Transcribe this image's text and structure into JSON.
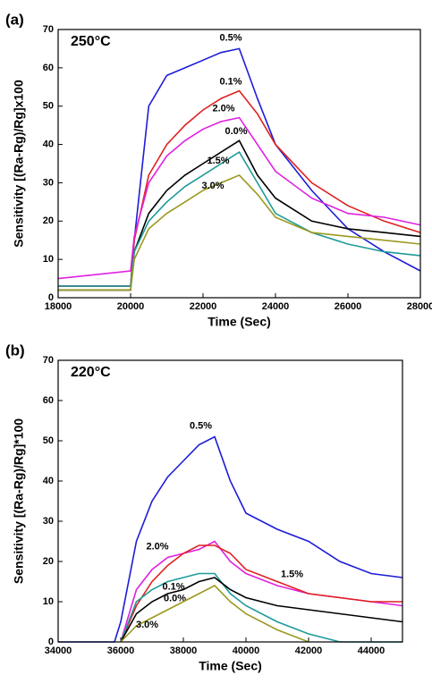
{
  "chart_data": [
    {
      "type": "line",
      "panel_label": "(a)",
      "annotation": "250°C",
      "x_label": "Time (Sec)",
      "y_label": "Sensitivity [(Ra-Rg)/Rg]x100",
      "x": [
        18000,
        19000,
        20000,
        20100,
        20500,
        21000,
        21500,
        22000,
        22500,
        23000,
        23500,
        24000,
        25000,
        26000,
        27000,
        28000
      ],
      "series": [
        {
          "name": "0.5%",
          "color": "#1c1cd8",
          "values": [
            3,
            3,
            3,
            15,
            50,
            58,
            60,
            62,
            64,
            65,
            52,
            40,
            28,
            18,
            12,
            7
          ]
        },
        {
          "name": "0.1%",
          "color": "#e02020",
          "values": [
            3,
            3,
            3,
            15,
            32,
            40,
            45,
            49,
            52,
            54,
            48,
            40,
            30,
            24,
            20,
            17
          ]
        },
        {
          "name": "2.0%",
          "color": "#e020e0",
          "values": [
            5,
            6,
            7,
            16,
            30,
            37,
            41,
            44,
            46,
            47,
            40,
            33,
            26,
            22,
            21,
            19
          ]
        },
        {
          "name": "0.0%",
          "color": "#000000",
          "values": [
            2,
            2,
            2,
            12,
            22,
            28,
            32,
            35,
            38,
            41,
            32,
            26,
            20,
            18,
            17,
            16
          ]
        },
        {
          "name": "1.5%",
          "color": "#1f9a9a",
          "values": [
            3,
            3,
            3,
            12,
            20,
            25,
            29,
            32,
            35,
            38,
            30,
            22,
            17,
            14,
            12,
            11
          ]
        },
        {
          "name": "3.0%",
          "color": "#9a9a1f",
          "values": [
            2,
            2,
            2,
            10,
            18,
            22,
            25,
            28,
            30,
            32,
            27,
            21,
            17,
            16,
            15,
            14
          ]
        }
      ],
      "xlim": [
        18000,
        28000
      ],
      "xticks": [
        18000,
        20000,
        22000,
        24000,
        26000,
        28000
      ],
      "ylim": [
        0,
        70
      ],
      "yticks": [
        0,
        10,
        20,
        30,
        40,
        50,
        60,
        70
      ]
    },
    {
      "type": "line",
      "panel_label": "(b)",
      "annotation": "220°C",
      "x_label": "Time (Sec)",
      "y_label": "Sensitivity [(Ra-Rg)/Rg]*100",
      "x": [
        34000,
        35000,
        35800,
        36000,
        36500,
        37000,
        37500,
        38000,
        38500,
        39000,
        39500,
        40000,
        41000,
        42000,
        43000,
        44000,
        45000
      ],
      "series": [
        {
          "name": "0.5%",
          "color": "#1c1cd8",
          "values": [
            0,
            0,
            0,
            5,
            25,
            35,
            41,
            45,
            49,
            51,
            40,
            32,
            28,
            25,
            20,
            17,
            16
          ]
        },
        {
          "name": "2.0%",
          "color": "#e020e0",
          "values": [
            null,
            null,
            null,
            0,
            13,
            18,
            21,
            22,
            23,
            25,
            20,
            17,
            14,
            12,
            11,
            10,
            9
          ]
        },
        {
          "name": "1.5%",
          "color": "#e02020",
          "values": [
            null,
            null,
            null,
            0,
            9,
            15,
            19,
            22,
            24,
            24,
            22,
            18,
            15,
            12,
            11,
            10,
            10
          ]
        },
        {
          "name": "0.1%",
          "color": "#1f9a9a",
          "values": [
            null,
            null,
            null,
            0,
            10,
            13,
            15,
            16,
            17,
            17,
            12,
            9,
            5,
            2,
            0,
            0,
            0
          ]
        },
        {
          "name": "0.0%",
          "color": "#000000",
          "values": [
            null,
            null,
            null,
            0,
            7,
            10,
            12,
            13,
            15,
            16,
            13,
            11,
            9,
            8,
            7,
            6,
            5
          ]
        },
        {
          "name": "3.0%",
          "color": "#9a9a1f",
          "values": [
            null,
            null,
            null,
            0,
            4,
            6,
            8,
            10,
            12,
            14,
            10,
            7,
            3,
            0,
            null,
            null,
            null
          ]
        }
      ],
      "xlim": [
        34000,
        45000
      ],
      "xticks": [
        34000,
        36000,
        38000,
        40000,
        42000,
        44000
      ],
      "ylim": [
        0,
        70
      ],
      "yticks": [
        0,
        10,
        20,
        30,
        40,
        50,
        60,
        70
      ]
    }
  ]
}
